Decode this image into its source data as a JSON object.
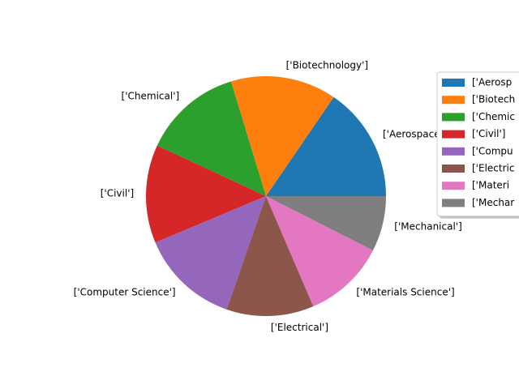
{
  "chart_data": {
    "type": "pie",
    "categories": [
      "['Aerospace']",
      "['Biotechnology']",
      "['Chemical']",
      "['Civil']",
      "['Computer Science']",
      "['Electrical']",
      "['Materials Science']",
      "['Mechanical']"
    ],
    "values": [
      15.5,
      14.3,
      13.4,
      13.3,
      13.4,
      11.8,
      11.1,
      7.5
    ],
    "colors": [
      "#1f77b4",
      "#ff7f0e",
      "#2ca02c",
      "#d62728",
      "#9467bd",
      "#8c564b",
      "#e377c2",
      "#7f7f7f"
    ],
    "legend": {
      "placement": "right",
      "entries": [
        "['Aerosp",
        "['Biotech",
        "['Chemic",
        "['Civil']",
        "['Compu",
        "['Electric",
        "['Materi",
        "['Mechar"
      ]
    },
    "title": ""
  }
}
